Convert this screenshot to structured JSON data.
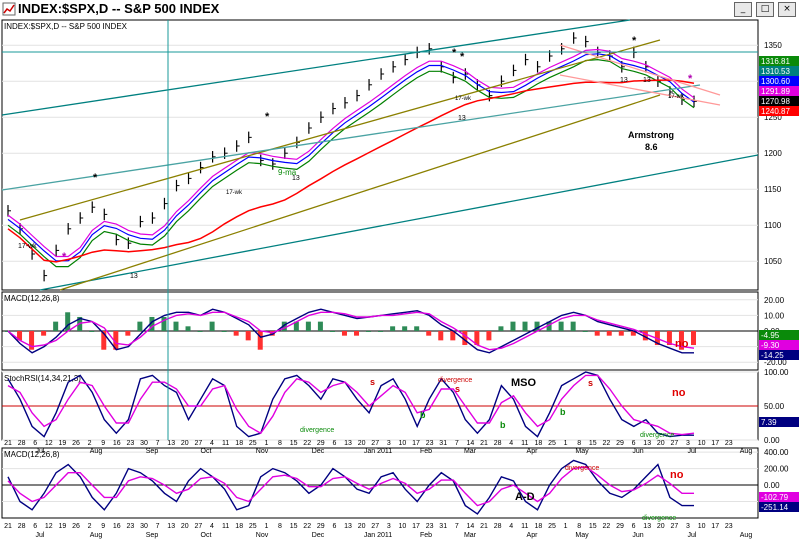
{
  "window": {
    "title": "INDEX:$SPX,D -- S&P 500 INDEX",
    "buttons": [
      "minimize-icon",
      "maximize-icon",
      "close-icon"
    ]
  },
  "colors": {
    "price_bar": "#000000",
    "ma_red": "#ff0000",
    "ma_green": "#008000",
    "ma_blue": "#0000ff",
    "ma_magenta": "#e000e0",
    "channel_olive": "#8b8000",
    "channel_teal": "#008080",
    "channel_pink": "#ff9999",
    "macd_line": "#000080",
    "signal_line": "#e000e0",
    "hist_pos": "#2e8b57",
    "hist_neg": "#ff3030"
  },
  "chart_data": [
    {
      "type": "line",
      "panel": "price",
      "title": "INDEX:$SPX,D -- S&P 500 INDEX",
      "ylim": [
        1010,
        1385
      ],
      "y_ticks": [
        1050,
        1100,
        1150,
        1200,
        1250,
        1300,
        1350
      ],
      "price_labels": [
        {
          "value": "1316.81",
          "color": "#0a8a0a"
        },
        {
          "value": "1310.53",
          "color": "#008080"
        },
        {
          "value": "1300.60",
          "color": "#0000ff"
        },
        {
          "value": "1291.89",
          "color": "#e000e0"
        },
        {
          "value": "1270.98",
          "color": "#000000"
        },
        {
          "value": "1240.87",
          "color": "#ff0000"
        }
      ],
      "series": [
        {
          "values": [
            1120,
            1095,
            1060,
            1030,
            1065,
            1095,
            1110,
            1125,
            1115,
            1080,
            1075,
            1105,
            1110,
            1130,
            1155,
            1165,
            1180,
            1195,
            1200,
            1210,
            1222,
            1190,
            1185,
            1200,
            1215,
            1235,
            1250,
            1262,
            1270,
            1280,
            1295,
            1310,
            1320,
            1330,
            1340,
            1345,
            1320,
            1305,
            1310,
            1295,
            1280,
            1300,
            1315,
            1330,
            1320,
            1335,
            1345,
            1360,
            1355,
            1340,
            1335,
            1320,
            1340,
            1320,
            1300,
            1285,
            1275,
            1272
          ]
        }
      ],
      "annotations": [
        "*",
        "*",
        "*",
        "*",
        "*",
        "9-ma",
        "13",
        "13",
        "13",
        "13",
        "13",
        "17-wk",
        "17-wk",
        "17-wk",
        "17-wk",
        "Armstrong",
        "8.6"
      ]
    },
    {
      "type": "line",
      "panel": "macd",
      "title": "MACD(12,26,8)",
      "ylim": [
        -25,
        25
      ],
      "y_ticks": [
        20.0,
        10.0,
        0.0,
        -10.0,
        -20.0
      ],
      "price_labels": [
        {
          "value": "-4.95",
          "color": "#0a8a0a"
        },
        {
          "value": "-9.30",
          "color": "#e000e0"
        },
        {
          "value": "-14.25",
          "color": "#000080"
        }
      ],
      "series": [
        {
          "name": "MACD",
          "values": [
            0,
            -8,
            -14,
            -10,
            -4,
            4,
            8,
            6,
            -2,
            -12,
            -10,
            -2,
            6,
            10,
            12,
            12,
            10,
            14,
            12,
            8,
            4,
            -4,
            -2,
            4,
            8,
            12,
            14,
            12,
            10,
            8,
            9,
            10,
            11,
            12,
            13,
            10,
            4,
            0,
            -6,
            -12,
            -14,
            -10,
            -6,
            -2,
            2,
            6,
            10,
            12,
            10,
            6,
            4,
            2,
            0,
            -4,
            -8,
            -11,
            -14,
            -14
          ]
        },
        {
          "name": "Signal",
          "values": [
            0,
            -6,
            -10,
            -9,
            -6,
            0,
            5,
            6,
            2,
            -8,
            -9,
            -4,
            3,
            7,
            10,
            11,
            10,
            12,
            12,
            9,
            6,
            0,
            -1,
            2,
            6,
            10,
            12,
            12,
            11,
            9,
            9,
            10,
            10,
            11,
            12,
            11,
            6,
            2,
            -3,
            -9,
            -12,
            -11,
            -8,
            -4,
            0,
            4,
            8,
            10,
            10,
            7,
            5,
            3,
            1,
            -2,
            -5,
            -8,
            -10,
            -11
          ]
        }
      ],
      "annotations": [
        "no"
      ]
    },
    {
      "type": "line",
      "panel": "stochrsi",
      "title": "StochRSI(14,34,21,3)",
      "ylim": [
        0,
        100
      ],
      "y_ticks": [
        100.0,
        50.0,
        0.0
      ],
      "price_labels": [
        {
          "value": "7.39",
          "color": "#000080"
        }
      ],
      "series": [
        {
          "name": "Stoch",
          "values": [
            90,
            60,
            20,
            5,
            40,
            85,
            95,
            70,
            30,
            10,
            30,
            90,
            95,
            80,
            70,
            30,
            60,
            90,
            80,
            20,
            5,
            10,
            60,
            90,
            95,
            80,
            60,
            90,
            85,
            60,
            40,
            80,
            90,
            60,
            20,
            60,
            90,
            70,
            30,
            10,
            30,
            80,
            60,
            20,
            5,
            40,
            80,
            90,
            100,
            95,
            60,
            30,
            20,
            30,
            10,
            5,
            7,
            7
          ]
        },
        {
          "name": "Signal",
          "values": [
            80,
            70,
            40,
            20,
            30,
            60,
            85,
            80,
            50,
            25,
            25,
            60,
            85,
            85,
            75,
            50,
            50,
            75,
            80,
            45,
            20,
            10,
            35,
            70,
            90,
            85,
            70,
            80,
            85,
            70,
            50,
            65,
            80,
            70,
            40,
            45,
            75,
            75,
            50,
            25,
            25,
            55,
            65,
            40,
            20,
            30,
            60,
            80,
            95,
            95,
            75,
            50,
            30,
            25,
            20,
            10,
            8,
            10
          ]
        }
      ],
      "annotations": [
        "divergence",
        "divergence",
        "divergence",
        "MSO",
        "s",
        "s",
        "s",
        "b",
        "b",
        "b",
        "no"
      ]
    },
    {
      "type": "line",
      "panel": "macd2",
      "title": "MACD(12,26,8)",
      "ylim": [
        -400,
        450
      ],
      "y_ticks": [
        400.0,
        200.0,
        0.0,
        -200.0
      ],
      "price_labels": [
        {
          "value": "-102.79",
          "color": "#e000e0"
        },
        {
          "value": "-251.14",
          "color": "#000080"
        }
      ],
      "series": [
        {
          "name": "MACD",
          "values": [
            100,
            -200,
            -300,
            -100,
            150,
            250,
            100,
            -150,
            -300,
            -100,
            200,
            150,
            50,
            -100,
            -200,
            50,
            200,
            100,
            -50,
            -300,
            -250,
            100,
            200,
            150,
            50,
            -100,
            0,
            200,
            100,
            -50,
            -100,
            100,
            150,
            -50,
            -200,
            0,
            150,
            50,
            -250,
            -350,
            -150,
            100,
            50,
            -200,
            -300,
            0,
            200,
            300,
            250,
            50,
            -100,
            -150,
            -50,
            100,
            250,
            -150,
            -250,
            -250
          ]
        },
        {
          "name": "Signal",
          "values": [
            50,
            -100,
            -200,
            -150,
            0,
            150,
            150,
            0,
            -150,
            -150,
            50,
            100,
            80,
            0,
            -100,
            -50,
            80,
            100,
            20,
            -150,
            -200,
            -50,
            100,
            120,
            80,
            -20,
            -20,
            80,
            100,
            20,
            -50,
            20,
            80,
            20,
            -100,
            -50,
            60,
            60,
            -100,
            -250,
            -200,
            -50,
            0,
            -100,
            -200,
            -100,
            80,
            200,
            220,
            120,
            0,
            -80,
            -60,
            20,
            120,
            20,
            -100,
            -100
          ]
        }
      ],
      "annotations": [
        "divergence",
        "A-D",
        "no",
        "divergence"
      ]
    }
  ],
  "x_axis": {
    "labels": [
      "21",
      "28",
      "6",
      "12",
      "19",
      "26",
      "2",
      "9",
      "16",
      "23",
      "30",
      "7",
      "13",
      "20",
      "27",
      "4",
      "11",
      "18",
      "25",
      "1",
      "8",
      "15",
      "22",
      "29",
      "6",
      "13",
      "20",
      "27",
      "3",
      "10",
      "17",
      "23",
      "31",
      "7",
      "14",
      "21",
      "28",
      "4",
      "11",
      "18",
      "25",
      "1",
      "8",
      "15",
      "22",
      "29",
      "6",
      "13",
      "20",
      "27",
      "3",
      "10",
      "17",
      "23"
    ],
    "months": [
      "Jul",
      "Aug",
      "Sep",
      "Oct",
      "Nov",
      "Dec",
      "Jan 2011",
      "Feb",
      "Mar",
      "Apr",
      "May",
      "Jun",
      "Jul",
      "Aug"
    ]
  }
}
